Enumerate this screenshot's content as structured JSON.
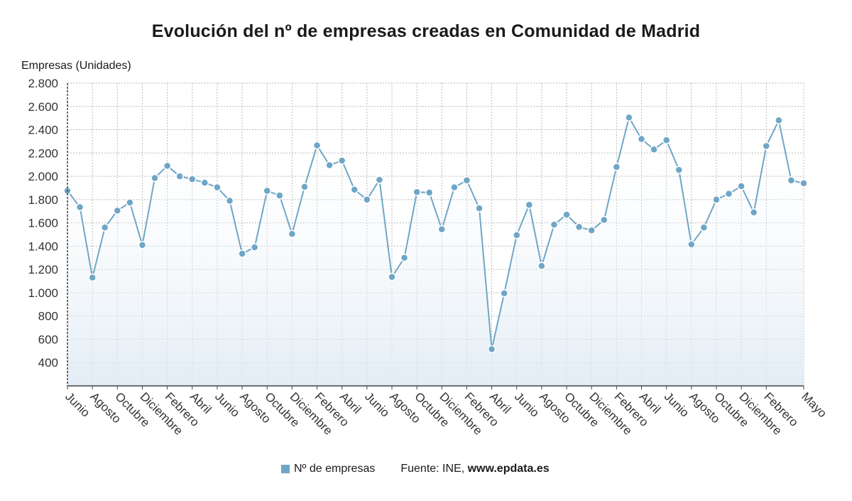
{
  "chart_data": {
    "type": "line",
    "title": "Evolución del nº de empresas creadas en Comunidad de Madrid",
    "ylabel": "Empresas (Unidades)",
    "xlabel": "",
    "ylim": [
      200,
      2800
    ],
    "yticks": [
      "2.800",
      "2.600",
      "2.400",
      "2.200",
      "2.000",
      "1.800",
      "1.600",
      "1.400",
      "1.200",
      "1.000",
      "800",
      "600",
      "400"
    ],
    "ytick_values": [
      2800,
      2600,
      2400,
      2200,
      2000,
      1800,
      1600,
      1400,
      1200,
      1000,
      800,
      600,
      400
    ],
    "x_tick_labels": [
      "Junio",
      "Agosto",
      "Octubre",
      "Diciembre",
      "Febrero",
      "Abril",
      "Junio",
      "Agosto",
      "Octubre",
      "Diciembre",
      "Febrero",
      "Abril",
      "Junio",
      "Agosto",
      "Octubre",
      "Diciembre",
      "Febrero",
      "Abril",
      "Junio",
      "Agosto",
      "Octubre",
      "Diciembre",
      "Febrero",
      "Abril",
      "Junio",
      "Agosto",
      "Octubre",
      "Diciembre",
      "Febrero",
      "Mayo"
    ],
    "grid": true,
    "legend_position": "bottom",
    "series": [
      {
        "name": "Nº de empresas",
        "color": "#6fa6c7",
        "values": [
          1875,
          1735,
          1130,
          1560,
          1705,
          1775,
          1410,
          1985,
          2090,
          2000,
          1975,
          1945,
          1905,
          1790,
          1335,
          1390,
          1875,
          1835,
          1505,
          1910,
          2265,
          2095,
          2135,
          1885,
          1800,
          1970,
          1135,
          1300,
          1865,
          1860,
          1545,
          1905,
          1965,
          1725,
          515,
          995,
          1495,
          1755,
          1230,
          1585,
          1670,
          1565,
          1535,
          1625,
          2080,
          2505,
          2320,
          2230,
          2310,
          2055,
          1415,
          1560,
          1800,
          1850,
          1915,
          1690,
          2260,
          2480,
          1965,
          1940
        ]
      }
    ]
  },
  "legend": {
    "label": "Nº de empresas",
    "color": "#6fa6c7"
  },
  "source": {
    "prefix": "Fuente: INE, ",
    "site": "www.epdata.es"
  }
}
